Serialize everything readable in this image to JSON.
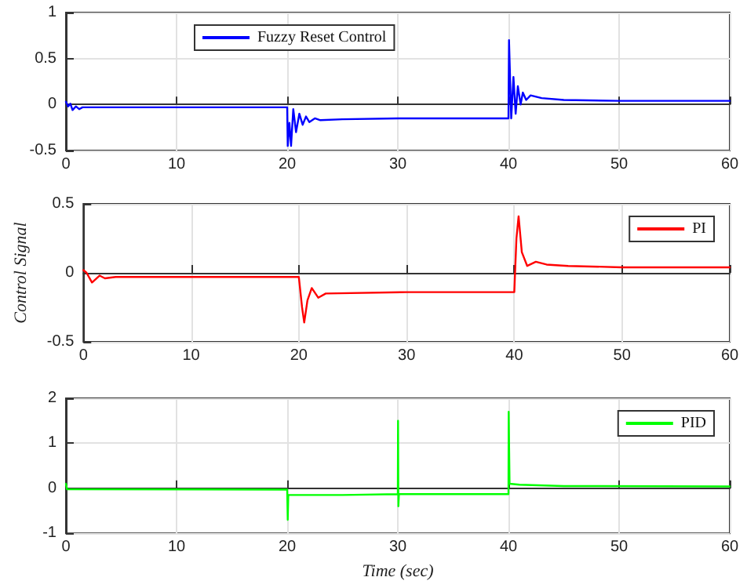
{
  "chart_data": [
    {
      "type": "line",
      "xlim": [
        0,
        60
      ],
      "xticks": [
        0,
        10,
        20,
        30,
        40,
        50,
        60
      ],
      "ylim": [
        -0.5,
        1
      ],
      "yticks": [
        -0.5,
        0,
        0.5,
        1
      ],
      "grid": true,
      "legend": "top left",
      "marker": "none",
      "line_style": "solid",
      "series": [
        {
          "name": "Fuzzy Reset Control",
          "color": "#0000ff",
          "x": [
            0,
            0.2,
            0.4,
            0.6,
            0.9,
            1.2,
            1.5,
            2,
            20,
            20.05,
            20.2,
            20.35,
            20.55,
            20.8,
            21.1,
            21.4,
            21.7,
            22,
            22.5,
            23,
            25,
            30,
            40,
            40.05,
            40.25,
            40.45,
            40.65,
            40.85,
            41.1,
            41.3,
            41.6,
            42,
            43,
            45,
            50,
            60
          ],
          "values": [
            0.03,
            -0.02,
            0.01,
            -0.06,
            -0.02,
            -0.05,
            -0.03,
            -0.03,
            -0.03,
            -0.45,
            -0.2,
            -0.45,
            -0.05,
            -0.3,
            -0.1,
            -0.22,
            -0.13,
            -0.19,
            -0.15,
            -0.17,
            -0.16,
            -0.15,
            -0.15,
            0.7,
            -0.15,
            0.3,
            -0.1,
            0.2,
            0.0,
            0.13,
            0.05,
            0.1,
            0.07,
            0.05,
            0.04,
            0.04
          ]
        }
      ]
    },
    {
      "type": "line",
      "ylabel": "Control Signal",
      "xlim": [
        0,
        60
      ],
      "xticks": [
        0,
        10,
        20,
        30,
        40,
        50,
        60
      ],
      "ylim": [
        -0.5,
        0.5
      ],
      "yticks": [
        -0.5,
        0,
        0.5
      ],
      "grid": true,
      "legend": "top right",
      "marker": "none",
      "line_style": "solid",
      "series": [
        {
          "name": "PI",
          "color": "#ff0000",
          "x": [
            0,
            0.3,
            0.8,
            1.5,
            2,
            3,
            20,
            20.3,
            20.5,
            20.8,
            21.2,
            21.8,
            22.5,
            30,
            40,
            40.2,
            40.4,
            40.7,
            41.2,
            42,
            43,
            45,
            50,
            60
          ],
          "values": [
            0.02,
            0,
            -0.07,
            -0.02,
            -0.04,
            -0.03,
            -0.03,
            -0.25,
            -0.36,
            -0.2,
            -0.11,
            -0.18,
            -0.15,
            -0.14,
            -0.14,
            0.25,
            0.41,
            0.15,
            0.05,
            0.08,
            0.06,
            0.05,
            0.04,
            0.04
          ]
        }
      ]
    },
    {
      "type": "line",
      "xlabel": "Time (sec)",
      "xlim": [
        0,
        60
      ],
      "xticks": [
        0,
        10,
        20,
        30,
        40,
        50,
        60
      ],
      "ylim": [
        -1,
        2
      ],
      "yticks": [
        -1,
        0,
        1,
        2
      ],
      "grid": true,
      "legend": "top right",
      "marker": "none",
      "line_style": "solid",
      "series": [
        {
          "name": "PID",
          "color": "#00ff00",
          "x": [
            0,
            0.1,
            20,
            20.05,
            20.1,
            25,
            30,
            30.02,
            30.05,
            30.1,
            40,
            40.02,
            40.1,
            41,
            45,
            60
          ],
          "values": [
            0.1,
            -0.02,
            -0.03,
            -0.7,
            -0.15,
            -0.15,
            -0.13,
            1.5,
            -0.4,
            -0.13,
            -0.13,
            1.7,
            0.1,
            0.08,
            0.05,
            0.04
          ]
        }
      ]
    }
  ]
}
